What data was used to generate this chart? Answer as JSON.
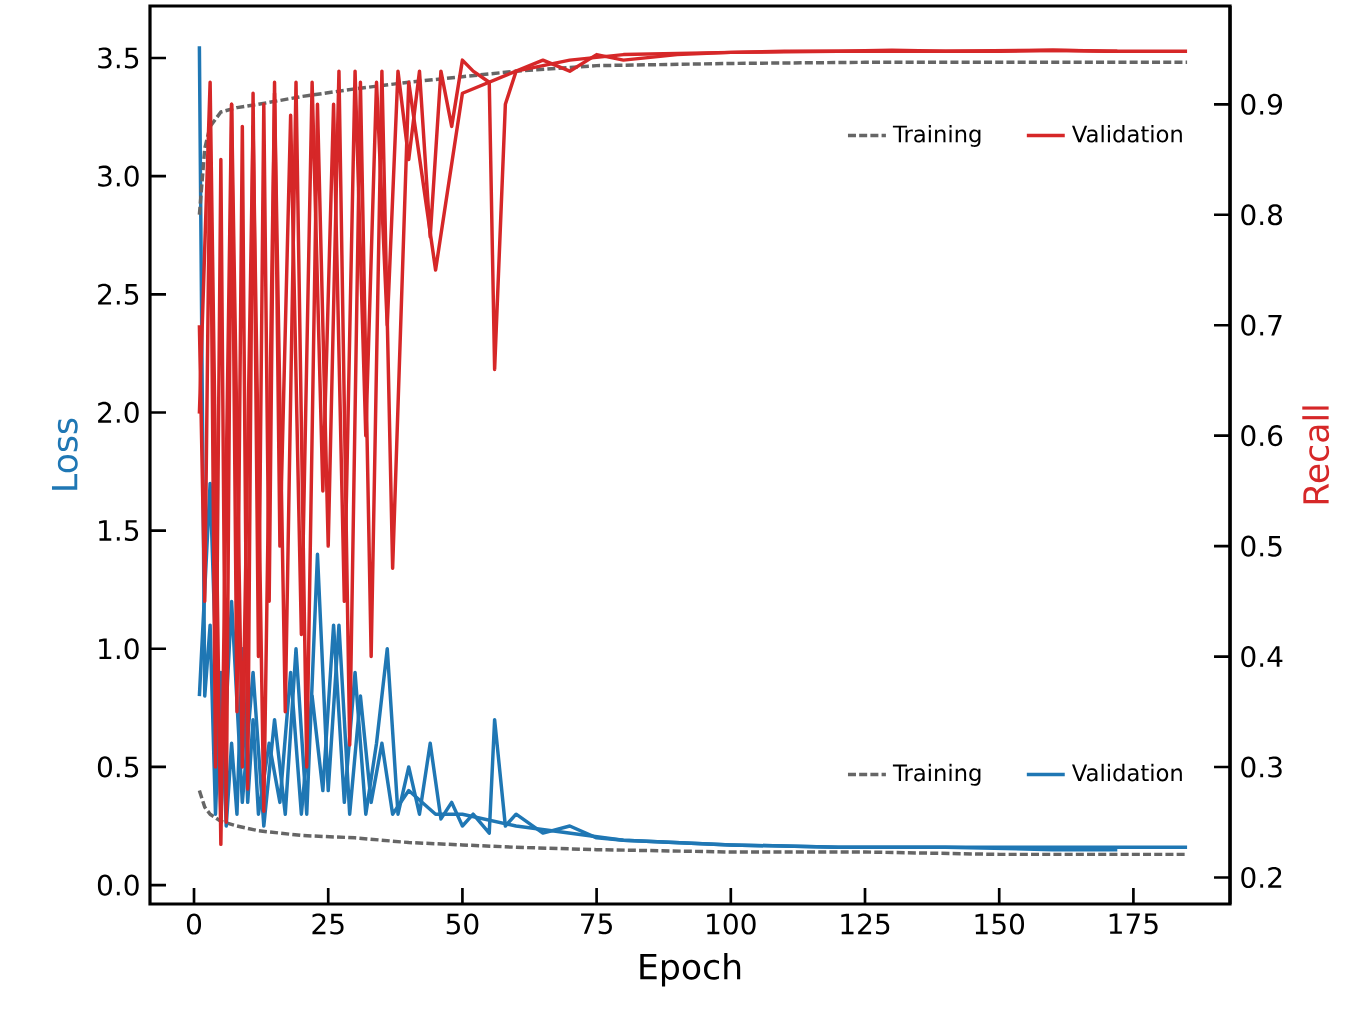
{
  "chart_data": {
    "type": "line",
    "xlabel": "Epoch",
    "ylabel": "Loss",
    "y2label": "Recall",
    "xlim": [
      -8.2,
      193
    ],
    "xticks": [
      0,
      25,
      50,
      75,
      100,
      125,
      150,
      175
    ],
    "ylim": [
      -0.08,
      3.72
    ],
    "yticks": [
      {
        "value": 0,
        "label": "0.0"
      },
      0.5,
      {
        "value": 1,
        "label": "1.0"
      },
      1.5,
      {
        "value": 2,
        "label": "2.0"
      },
      2.5,
      {
        "value": 3,
        "label": "3.0"
      },
      3.5
    ],
    "y2lim": [
      0.176,
      0.989
    ],
    "y2ticks": [
      0.2,
      0.3,
      0.4,
      0.5,
      0.6,
      0.7,
      0.8,
      0.9
    ],
    "legend": "right",
    "series": [
      {
        "name": "Training",
        "axis": "y2",
        "color": "#666666",
        "line_style": "dashed",
        "x": [
          1,
          2,
          3,
          5,
          8,
          12,
          20,
          30,
          40,
          50,
          60,
          75,
          100,
          125,
          150,
          185
        ],
        "values": [
          0.8,
          0.86,
          0.88,
          0.893,
          0.897,
          0.9,
          0.907,
          0.914,
          0.92,
          0.925,
          0.93,
          0.935,
          0.937,
          0.938,
          0.938,
          0.938
        ]
      },
      {
        "name": "Validation",
        "axis": "y2",
        "color": "#d62728",
        "x": [
          1,
          2,
          3,
          4,
          5,
          6,
          7,
          8,
          9,
          10,
          11,
          12,
          13,
          14,
          15,
          16,
          18,
          20,
          22,
          24,
          26,
          28,
          30,
          32,
          34,
          36,
          38,
          40,
          42,
          44,
          46,
          48,
          50,
          52,
          55,
          56,
          58,
          60,
          65,
          70,
          75,
          80,
          90,
          100,
          110,
          120,
          130,
          140,
          150,
          160,
          170,
          180,
          185
        ],
        "values": [
          0.7,
          0.45,
          0.88,
          0.3,
          0.85,
          0.25,
          0.9,
          0.35,
          0.88,
          0.28,
          0.91,
          0.4,
          0.9,
          0.45,
          0.92,
          0.5,
          0.89,
          0.42,
          0.92,
          0.55,
          0.9,
          0.45,
          0.93,
          0.6,
          0.92,
          0.7,
          0.93,
          0.85,
          0.93,
          0.78,
          0.93,
          0.88,
          0.94,
          0.93,
          0.92,
          0.66,
          0.9,
          0.93,
          0.94,
          0.93,
          0.945,
          0.94,
          0.945,
          0.947,
          0.948,
          0.948,
          0.949,
          0.948,
          0.948,
          0.949,
          0.948,
          0.948,
          0.948
        ]
      },
      {
        "axis": "y2",
        "color": "#d62728",
        "x": [
          1,
          3,
          5,
          7,
          9,
          11,
          13,
          15,
          17,
          19,
          21,
          23,
          25,
          27,
          29,
          31,
          33,
          35,
          37,
          40,
          45,
          50,
          60,
          70,
          80,
          100,
          120,
          140,
          160,
          172
        ],
        "values": [
          0.62,
          0.92,
          0.23,
          0.9,
          0.3,
          0.88,
          0.26,
          0.91,
          0.35,
          0.92,
          0.3,
          0.9,
          0.5,
          0.93,
          0.32,
          0.92,
          0.4,
          0.93,
          0.48,
          0.92,
          0.75,
          0.91,
          0.93,
          0.94,
          0.945,
          0.947,
          0.948,
          0.948,
          0.949,
          0.948
        ]
      },
      {
        "name": "Training",
        "axis": "y",
        "color": "#666666",
        "line_style": "dashed",
        "x": [
          1,
          2,
          3,
          5,
          8,
          12,
          20,
          30,
          40,
          50,
          60,
          75,
          100,
          125,
          150,
          185
        ],
        "values": [
          0.4,
          0.33,
          0.3,
          0.27,
          0.25,
          0.23,
          0.21,
          0.2,
          0.18,
          0.17,
          0.16,
          0.15,
          0.14,
          0.14,
          0.13,
          0.13
        ]
      },
      {
        "name": "Validation",
        "axis": "y",
        "color": "#1f77b4",
        "x": [
          1,
          2,
          3,
          4,
          5,
          6,
          7,
          8,
          9,
          10,
          11,
          12,
          14,
          16,
          18,
          20,
          22,
          24,
          26,
          28,
          30,
          32,
          34,
          36,
          38,
          40,
          42,
          44,
          46,
          48,
          50,
          52,
          55,
          56,
          58,
          60,
          65,
          70,
          75,
          80,
          90,
          100,
          120,
          140,
          160,
          185
        ],
        "values": [
          3.55,
          0.8,
          1.1,
          0.3,
          0.9,
          0.25,
          0.6,
          0.3,
          1.0,
          0.35,
          0.7,
          0.3,
          0.6,
          0.35,
          0.9,
          0.3,
          0.8,
          0.4,
          1.1,
          0.35,
          0.9,
          0.3,
          0.6,
          1.0,
          0.3,
          0.5,
          0.3,
          0.6,
          0.28,
          0.35,
          0.25,
          0.3,
          0.22,
          0.7,
          0.25,
          0.3,
          0.22,
          0.25,
          0.2,
          0.19,
          0.18,
          0.17,
          0.16,
          0.16,
          0.16,
          0.16
        ]
      },
      {
        "axis": "y",
        "color": "#1f77b4",
        "x": [
          1,
          3,
          5,
          7,
          9,
          11,
          13,
          15,
          17,
          19,
          21,
          23,
          25,
          27,
          29,
          31,
          33,
          35,
          37,
          40,
          45,
          50,
          60,
          70,
          80,
          100,
          120,
          140,
          160,
          172
        ],
        "values": [
          0.8,
          1.7,
          0.3,
          1.2,
          0.35,
          0.9,
          0.25,
          0.7,
          0.3,
          1.0,
          0.3,
          1.4,
          0.4,
          1.1,
          0.3,
          0.8,
          0.35,
          0.6,
          0.3,
          0.4,
          0.3,
          0.3,
          0.25,
          0.22,
          0.19,
          0.17,
          0.16,
          0.16,
          0.15,
          0.15
        ]
      }
    ]
  }
}
